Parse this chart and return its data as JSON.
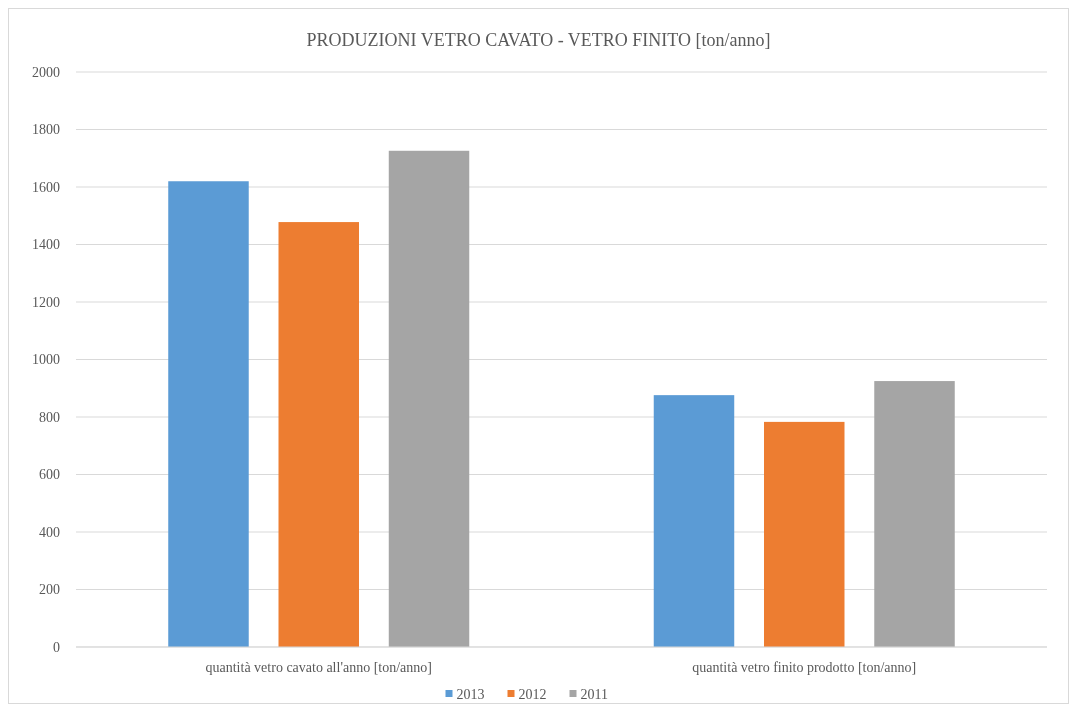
{
  "chart_data": {
    "type": "bar",
    "title": "PRODUZIONI VETRO CAVATO - VETRO FINITO [ton/anno]",
    "categories": [
      "quantità vetro cavato all'anno [ton/anno]",
      "quantità vetro finito prodotto [ton/anno]"
    ],
    "series": [
      {
        "name": "2013",
        "color": "#5b9bd5",
        "values": [
          1620,
          876
        ]
      },
      {
        "name": "2012",
        "color": "#ed7d31",
        "values": [
          1478,
          783
        ]
      },
      {
        "name": "2011",
        "color": "#a5a5a5",
        "values": [
          1726,
          925
        ]
      }
    ],
    "ylim": [
      0,
      2000
    ],
    "yticks": [
      0,
      200,
      400,
      600,
      800,
      1000,
      1200,
      1400,
      1600,
      1800,
      2000
    ],
    "grid": "y",
    "legend": "bottom"
  }
}
